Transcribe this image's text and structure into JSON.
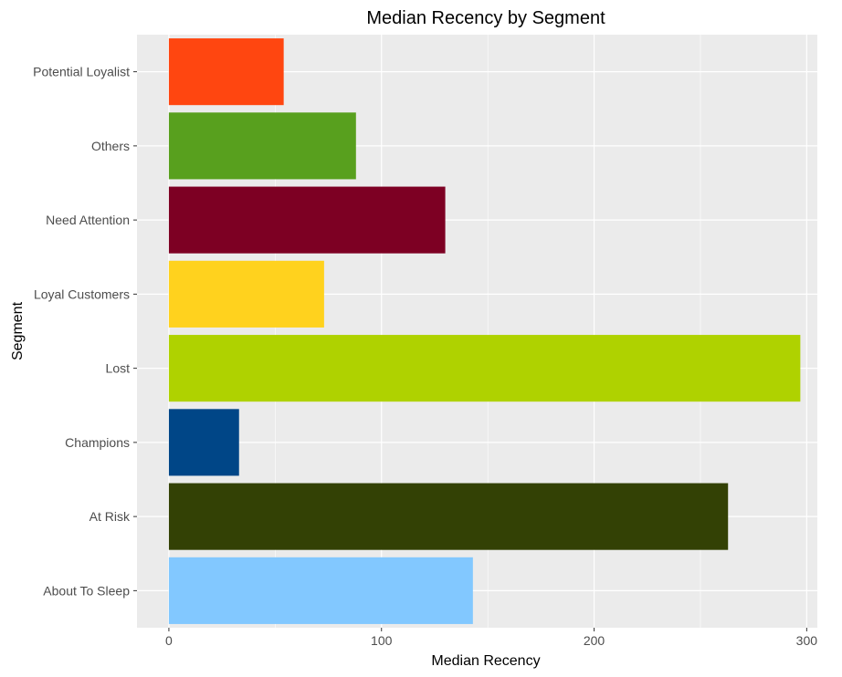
{
  "chart_data": {
    "type": "bar",
    "orientation": "horizontal",
    "title": "Median Recency by Segment",
    "xlabel": "Median Recency",
    "ylabel": "Segment",
    "categories": [
      "About To Sleep",
      "At Risk",
      "Champions",
      "Lost",
      "Loyal Customers",
      "Need Attention",
      "Others",
      "Potential Loyalist"
    ],
    "values": [
      143,
      263,
      33,
      297,
      73,
      130,
      88,
      54
    ],
    "colors": [
      "#82C8FF",
      "#334105",
      "#004687",
      "#AFD200",
      "#FFD21E",
      "#7D0023",
      "#58A01E",
      "#FF4610"
    ],
    "xlim": [
      -15,
      305
    ],
    "xticks": [
      0,
      100,
      200,
      300
    ],
    "grid": true,
    "legend": "none",
    "panel_background": "#EBEBEB",
    "grid_color": "#FFFFFF"
  }
}
